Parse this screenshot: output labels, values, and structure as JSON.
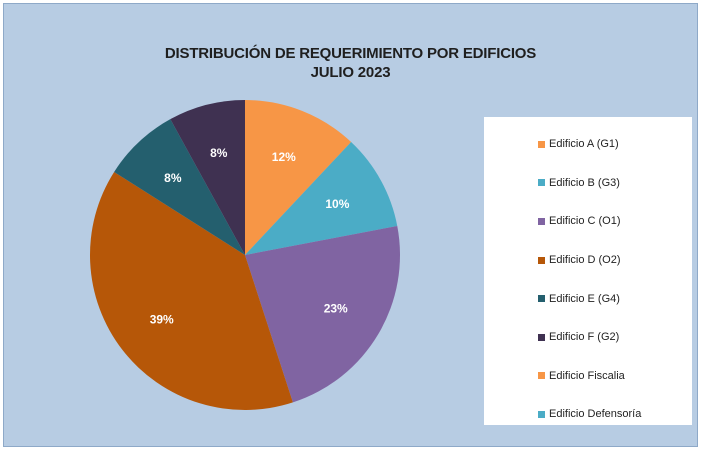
{
  "chart_data": {
    "type": "pie",
    "title": "DISTRIBUCIÓN DE REQUERIMIENTO POR EDIFICIOS",
    "subtitle": "JULIO 2023",
    "legend_position": "right",
    "slices": [
      {
        "name": "Edificio A (G1)",
        "value": 12,
        "label": "12%",
        "color": "#f79646"
      },
      {
        "name": "Edificio B (G3)",
        "value": 10,
        "label": "10%",
        "color": "#4bacc6"
      },
      {
        "name": "Edificio C (O1)",
        "value": 23,
        "label": "23%",
        "color": "#8064a2"
      },
      {
        "name": "Edificio D (O2)",
        "value": 39,
        "label": "39%",
        "color": "#b65708"
      },
      {
        "name": "Edificio E (G4)",
        "value": 8,
        "label": "8%",
        "color": "#245f6e"
      },
      {
        "name": "Edificio F (G2)",
        "value": 8,
        "label": "8%",
        "color": "#3f3151"
      },
      {
        "name": "Edificio Fiscalia",
        "value": 0,
        "label": "",
        "color": "#f79646"
      },
      {
        "name": "Edificio Defensoría",
        "value": 0,
        "label": "",
        "color": "#4bacc6"
      }
    ]
  }
}
